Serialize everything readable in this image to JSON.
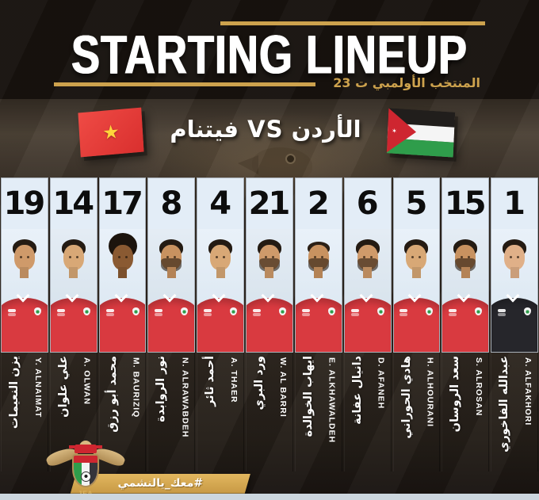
{
  "poster": {
    "title": "STARTING LINEUP",
    "subtitle_ar": "المنتخب الأولمبي ت 23",
    "match_ar": "الأردن VS فيتنام"
  },
  "flags": {
    "left": "vietnam",
    "right": "jordan",
    "vietnam_star": "★",
    "jordan_star": "✶"
  },
  "players": [
    {
      "number": "19",
      "name_ar": "يزن النعيمات",
      "name_en": "Y. ALNAIMAT",
      "jersey": "#d93a40",
      "skin": "#cf9a6a",
      "hair": "short",
      "beard": false
    },
    {
      "number": "14",
      "name_ar": "علي علوان",
      "name_en": "A. OLWAN",
      "jersey": "#d93a40",
      "skin": "#d8a876",
      "hair": "short",
      "beard": false
    },
    {
      "number": "17",
      "name_ar": "محمد أبو رزق",
      "name_en": "M. BAURIZIQ",
      "jersey": "#d93a40",
      "skin": "#8a5a32",
      "hair": "afro",
      "beard": false
    },
    {
      "number": "8",
      "name_ar": "نور الروابدة",
      "name_en": "N. ALRAWABDEH",
      "jersey": "#d93a40",
      "skin": "#c89260",
      "hair": "short",
      "beard": true
    },
    {
      "number": "4",
      "name_ar": "أحمد ثائر",
      "name_en": "A. THAER",
      "jersey": "#d93a40",
      "skin": "#d8a876",
      "hair": "short",
      "beard": false
    },
    {
      "number": "21",
      "name_ar": "ورد البري",
      "name_en": "W. AL BARRI",
      "jersey": "#d93a40",
      "skin": "#cf9a6a",
      "hair": "short",
      "beard": true
    },
    {
      "number": "2",
      "name_ar": "ايهاب الخوالدة",
      "name_en": "E. ALKHAWALDEH",
      "jersey": "#d93a40",
      "skin": "#c89260",
      "hair": "buzz",
      "beard": true
    },
    {
      "number": "6",
      "name_ar": "دانيال عفانة",
      "name_en": "D. AFANEH",
      "jersey": "#d93a40",
      "skin": "#cf9a6a",
      "hair": "short",
      "beard": true
    },
    {
      "number": "5",
      "name_ar": "هادي الحوراني",
      "name_en": "H. ALHOURANI",
      "jersey": "#d93a40",
      "skin": "#d8a876",
      "hair": "short",
      "beard": false
    },
    {
      "number": "15",
      "name_ar": "سعد الروسان",
      "name_en": "S. ALROSAN",
      "jersey": "#d93a40",
      "skin": "#c89260",
      "hair": "short",
      "beard": true
    },
    {
      "number": "1",
      "name_ar": "عبدالله الفاخوري",
      "name_en": "A. ALFAKHORI",
      "jersey": "#26262b",
      "skin": "#e0b088",
      "hair": "short",
      "beard": false
    }
  ],
  "footer": {
    "hashtag": "#معك_يالنشمي",
    "logo_label": "JFA"
  },
  "colors": {
    "gold": "#cda24d",
    "card_bg": "#e3edf7",
    "jersey_red": "#d93a40",
    "gk_black": "#26262b",
    "bottom_strip": "#ccd6de"
  }
}
